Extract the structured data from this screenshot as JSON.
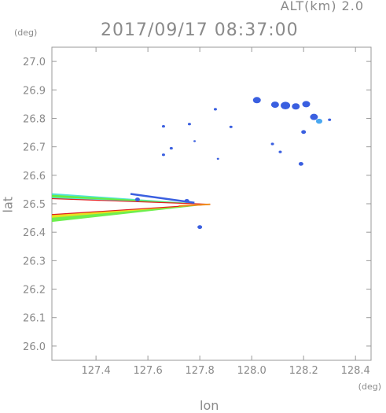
{
  "header": {
    "alt_label": "ALT(km) 2.0",
    "timestamp": "2017/09/17 08:37:00"
  },
  "axes": {
    "y_unit": "(deg)",
    "x_unit": "(deg)",
    "xlabel": "lon",
    "ylabel": "lat"
  },
  "chart_data": {
    "type": "heatmap",
    "description_free": true,
    "xlim": [
      127.23,
      128.46
    ],
    "ylim": [
      25.95,
      27.05
    ],
    "xticks": [
      127.4,
      127.6,
      127.8,
      128.0,
      128.2,
      128.4
    ],
    "xtick_labels": [
      "127.4",
      "127.6",
      "127.8",
      "128.0",
      "128.2",
      "128.4"
    ],
    "yticks": [
      26.0,
      26.1,
      26.2,
      26.3,
      26.4,
      26.5,
      26.6,
      26.7,
      26.8,
      26.9,
      27.0
    ],
    "ytick_labels": [
      "26.0",
      "26.1",
      "26.2",
      "26.3",
      "26.4",
      "26.5",
      "26.6",
      "26.7",
      "26.8",
      "26.9",
      "27.0"
    ],
    "grid": false,
    "colors": {
      "blue": "#3a5fe0",
      "light_blue": "#4aa8f0",
      "cyan": "#40e0d0",
      "green": "#66ee44",
      "yellow": "#e8e020",
      "orange": "#f09020",
      "red": "#e02020"
    },
    "beam": {
      "apex": [
        127.84,
        26.498
      ],
      "upper_edge": [
        [
          127.23,
          26.537
        ],
        [
          127.23,
          26.518
        ]
      ],
      "lower_edge": [
        [
          127.23,
          26.462
        ],
        [
          127.23,
          26.436
        ]
      ]
    },
    "echoes": [
      {
        "lon": 128.02,
        "lat": 26.864,
        "size": 5,
        "color": "blue"
      },
      {
        "lon": 128.09,
        "lat": 26.848,
        "size": 5,
        "color": "blue"
      },
      {
        "lon": 128.13,
        "lat": 26.845,
        "size": 6,
        "color": "blue"
      },
      {
        "lon": 128.17,
        "lat": 26.842,
        "size": 5,
        "color": "blue"
      },
      {
        "lon": 128.21,
        "lat": 26.85,
        "size": 5,
        "color": "blue"
      },
      {
        "lon": 128.24,
        "lat": 26.805,
        "size": 5,
        "color": "blue"
      },
      {
        "lon": 128.26,
        "lat": 26.79,
        "size": 4,
        "color": "light_blue"
      },
      {
        "lon": 128.2,
        "lat": 26.752,
        "size": 3,
        "color": "blue"
      },
      {
        "lon": 128.3,
        "lat": 26.795,
        "size": 2,
        "color": "blue"
      },
      {
        "lon": 127.86,
        "lat": 26.832,
        "size": 2,
        "color": "blue"
      },
      {
        "lon": 127.92,
        "lat": 26.77,
        "size": 2,
        "color": "blue"
      },
      {
        "lon": 127.66,
        "lat": 26.772,
        "size": 2,
        "color": "blue"
      },
      {
        "lon": 127.76,
        "lat": 26.78,
        "size": 2,
        "color": "blue"
      },
      {
        "lon": 127.78,
        "lat": 26.72,
        "size": 1.5,
        "color": "blue"
      },
      {
        "lon": 128.08,
        "lat": 26.71,
        "size": 2,
        "color": "blue"
      },
      {
        "lon": 128.11,
        "lat": 26.682,
        "size": 2,
        "color": "blue"
      },
      {
        "lon": 128.19,
        "lat": 26.64,
        "size": 3,
        "color": "blue"
      },
      {
        "lon": 127.69,
        "lat": 26.695,
        "size": 2,
        "color": "blue"
      },
      {
        "lon": 127.66,
        "lat": 26.672,
        "size": 2,
        "color": "blue"
      },
      {
        "lon": 127.87,
        "lat": 26.658,
        "size": 1.5,
        "color": "blue"
      },
      {
        "lon": 127.8,
        "lat": 26.418,
        "size": 3,
        "color": "blue"
      },
      {
        "lon": 127.75,
        "lat": 26.51,
        "size": 3,
        "color": "blue"
      },
      {
        "lon": 127.56,
        "lat": 26.515,
        "size": 3,
        "color": "blue"
      }
    ]
  }
}
